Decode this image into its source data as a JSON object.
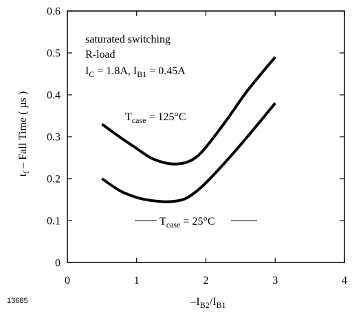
{
  "figure_id": "13685",
  "chart_data": {
    "type": "line",
    "xlabel": {
      "main": "–I",
      "sub1": "B2",
      "mid": "/I",
      "sub2": "B1"
    },
    "ylabel": {
      "main": "t",
      "sub": "f",
      "rest": " – Fall Time ( µs )"
    },
    "xlim": [
      0,
      4
    ],
    "ylim": [
      0,
      0.6
    ],
    "xticks": [
      0,
      1,
      2,
      3,
      4
    ],
    "yticks": [
      0,
      0.1,
      0.2,
      0.3,
      0.4,
      0.5,
      0.6
    ],
    "ytick_labels": [
      "0",
      "0.1",
      "0.2",
      "0.3",
      "0.4",
      "0.5",
      "0.6"
    ],
    "grid": false,
    "conditions": {
      "line1": "saturated switching",
      "line2": "R-load",
      "ic_main": "I",
      "ic_sub": "C",
      "ic_val": " = 1.8A, I",
      "ib_sub": "B1",
      "ib_val": " = 0.45A"
    },
    "series": [
      {
        "name": {
          "main": "T",
          "sub": "case",
          "rest": " = 125°C"
        },
        "x": [
          0.5,
          0.75,
          1.0,
          1.2,
          1.4,
          1.55,
          1.7,
          1.85,
          2.0,
          2.3,
          2.6,
          3.0
        ],
        "values": [
          0.33,
          0.3,
          0.272,
          0.25,
          0.238,
          0.235,
          0.238,
          0.25,
          0.275,
          0.34,
          0.41,
          0.49
        ]
      },
      {
        "name": {
          "main": "T",
          "sub": "case",
          "rest": " = 25°C"
        },
        "x": [
          0.5,
          0.75,
          1.0,
          1.2,
          1.4,
          1.55,
          1.7,
          1.85,
          2.0,
          2.3,
          2.6,
          3.0
        ],
        "values": [
          0.2,
          0.172,
          0.155,
          0.148,
          0.145,
          0.146,
          0.152,
          0.168,
          0.19,
          0.243,
          0.3,
          0.38
        ]
      }
    ]
  }
}
